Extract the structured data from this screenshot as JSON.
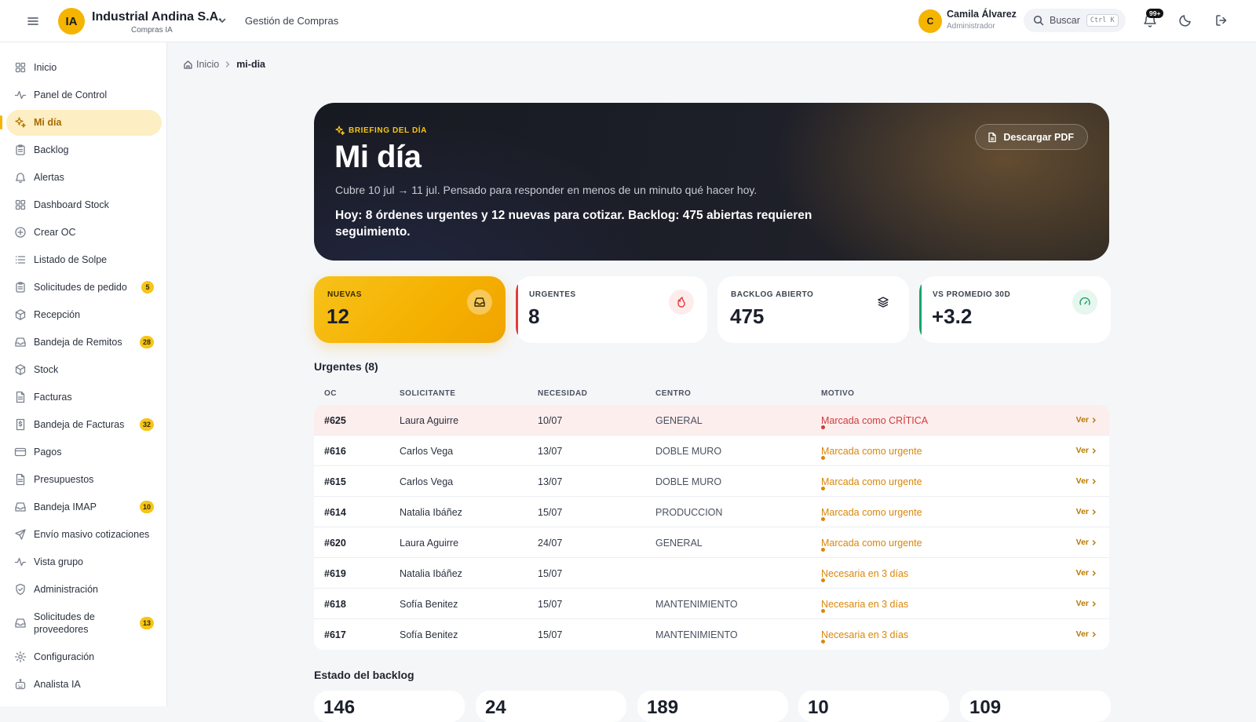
{
  "header": {
    "brand_initials": "IA",
    "brand_name": "Industrial Andina S.A.",
    "brand_sub": "Compras IA",
    "module": "Gestión de Compras",
    "user_initial": "C",
    "user_name": "Camila Álvarez",
    "user_role": "Administrador",
    "search_label": "Buscar",
    "search_shortcut": "Ctrl K",
    "notifications_badge": "99+"
  },
  "sidebar": {
    "items": [
      {
        "label": "Inicio",
        "icon": "grid-icon"
      },
      {
        "label": "Panel de Control",
        "icon": "activity-icon"
      },
      {
        "label": "Mi día",
        "icon": "sparkles-icon",
        "active": true
      },
      {
        "label": "Backlog",
        "icon": "clipboard-icon"
      },
      {
        "label": "Alertas",
        "icon": "bell-icon"
      },
      {
        "label": "Dashboard Stock",
        "icon": "grid-icon"
      },
      {
        "label": "Crear OC",
        "icon": "plus-circle-icon"
      },
      {
        "label": "Listado de Solpe",
        "icon": "list-icon"
      },
      {
        "label": "Solicitudes de pedido",
        "icon": "clipboard-icon",
        "badge": "5"
      },
      {
        "label": "Recepción",
        "icon": "package-icon"
      },
      {
        "label": "Bandeja de Remitos",
        "icon": "inbox-icon",
        "badge": "28"
      },
      {
        "label": "Stock",
        "icon": "package-icon"
      },
      {
        "label": "Facturas",
        "icon": "file-icon"
      },
      {
        "label": "Bandeja de Facturas",
        "icon": "dollar-file-icon",
        "badge": "32"
      },
      {
        "label": "Pagos",
        "icon": "credit-card-icon"
      },
      {
        "label": "Presupuestos",
        "icon": "file-icon"
      },
      {
        "label": "Bandeja IMAP",
        "icon": "inbox-icon",
        "badge": "10"
      },
      {
        "label": "Envío masivo cotizaciones",
        "icon": "send-icon"
      },
      {
        "label": "Vista grupo",
        "icon": "activity-icon"
      },
      {
        "label": "Administración",
        "icon": "shield-icon"
      },
      {
        "label": "Solicitudes de proveedores",
        "icon": "inbox-icon",
        "badge": "13"
      },
      {
        "label": "Configuración",
        "icon": "gear-icon"
      },
      {
        "label": "Analista IA",
        "icon": "robot-icon"
      }
    ]
  },
  "breadcrumb": {
    "home": "Inicio",
    "current": "mi-dia"
  },
  "hero": {
    "kicker": "BRIEFING DEL DÍA",
    "title": "Mi día",
    "subtitle": "Cubre 10 jul → 11 jul. Pensado para responder en menos de un minuto qué hacer hoy.",
    "summary": "Hoy: 8 órdenes urgentes y 12 nuevas para cotizar. Backlog: 475 abiertas requieren seguimiento.",
    "pdf_button": "Descargar PDF"
  },
  "stats": [
    {
      "label": "NUEVAS",
      "value": "12",
      "icon": "inbox-icon"
    },
    {
      "label": "URGENTES",
      "value": "8",
      "icon": "flame-icon",
      "accent": "#e23b3b"
    },
    {
      "label": "BACKLOG ABIERTO",
      "value": "475",
      "icon": "layers-icon"
    },
    {
      "label": "VS PROMEDIO 30D",
      "value": "+3.2",
      "icon": "gauge-icon",
      "accent": "#17a36b"
    }
  ],
  "urgentes": {
    "title": "Urgentes (8)",
    "columns": [
      "OC",
      "SOLICITANTE",
      "NECESIDAD",
      "CENTRO",
      "MOTIVO"
    ],
    "action_label": "Ver",
    "rows": [
      {
        "oc": "#625",
        "solicitante": "Laura Aguirre",
        "necesidad": "10/07",
        "centro": "GENERAL",
        "motivo": "Marcada como CRÍTICA",
        "level": "critical"
      },
      {
        "oc": "#616",
        "solicitante": "Carlos Vega",
        "necesidad": "13/07",
        "centro": "DOBLE MURO",
        "motivo": "Marcada como urgente",
        "level": "urgent"
      },
      {
        "oc": "#615",
        "solicitante": "Carlos Vega",
        "necesidad": "13/07",
        "centro": "DOBLE MURO",
        "motivo": "Marcada como urgente",
        "level": "urgent"
      },
      {
        "oc": "#614",
        "solicitante": "Natalia Ibáñez",
        "necesidad": "15/07",
        "centro": "PRODUCCION",
        "motivo": "Marcada como urgente",
        "level": "urgent"
      },
      {
        "oc": "#620",
        "solicitante": "Laura Aguirre",
        "necesidad": "24/07",
        "centro": "GENERAL",
        "motivo": "Marcada como urgente",
        "level": "urgent"
      },
      {
        "oc": "#619",
        "solicitante": "Natalia Ibáñez",
        "necesidad": "15/07",
        "centro": "",
        "motivo": "Necesaria en 3 días",
        "level": "urgent"
      },
      {
        "oc": "#618",
        "solicitante": "Sofía Benitez",
        "necesidad": "15/07",
        "centro": "MANTENIMIENTO",
        "motivo": "Necesaria en 3 días",
        "level": "urgent"
      },
      {
        "oc": "#617",
        "solicitante": "Sofía Benitez",
        "necesidad": "15/07",
        "centro": "MANTENIMIENTO",
        "motivo": "Necesaria en 3 días",
        "level": "urgent"
      }
    ]
  },
  "backlog": {
    "title": "Estado del backlog",
    "values": [
      "146",
      "24",
      "189",
      "10",
      "109"
    ]
  },
  "colors": {
    "accent": "#f5b400",
    "critical": "#d33a3a",
    "urgent": "#d9870b"
  }
}
